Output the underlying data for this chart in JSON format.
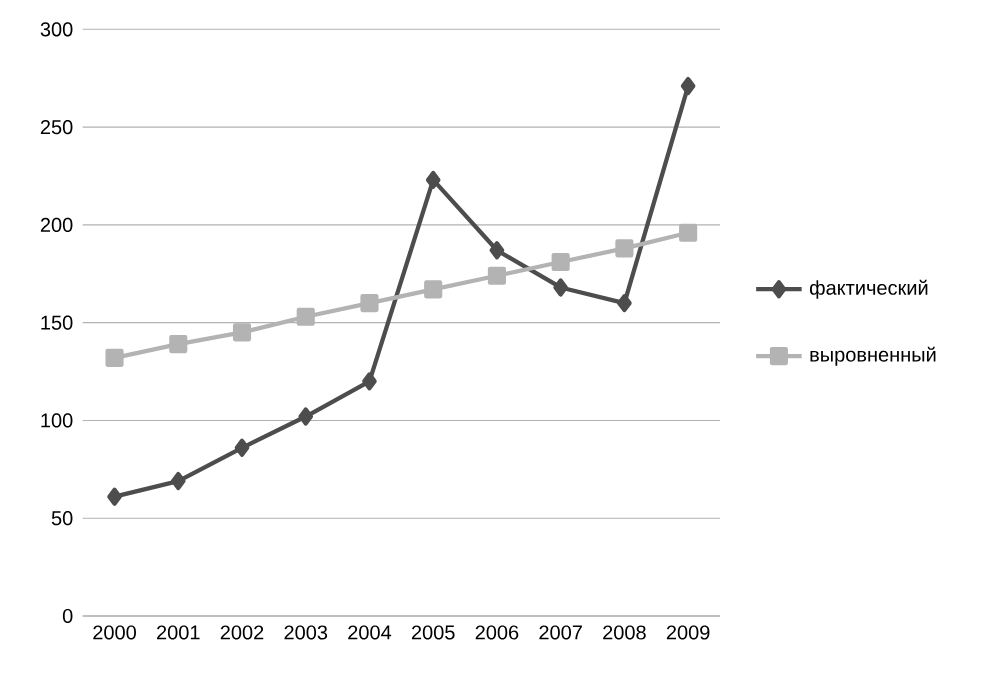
{
  "chart_data": {
    "type": "line",
    "categories": [
      "2000",
      "2001",
      "2002",
      "2003",
      "2004",
      "2005",
      "2006",
      "2007",
      "2008",
      "2009"
    ],
    "series": [
      {
        "name": "фактический",
        "color": "#4d4d4d",
        "marker": "diamond",
        "values": [
          61,
          69,
          86,
          102,
          120,
          223,
          187,
          168,
          160,
          271
        ]
      },
      {
        "name": "выровненный",
        "color": "#b3b3b3",
        "marker": "square",
        "values": [
          132,
          139,
          145,
          153,
          160,
          167,
          174,
          181,
          188,
          196
        ]
      }
    ],
    "ylim": [
      0,
      300
    ],
    "yticks": [
      0,
      50,
      100,
      150,
      200,
      250,
      300
    ],
    "grid": "y",
    "legend": "right"
  }
}
